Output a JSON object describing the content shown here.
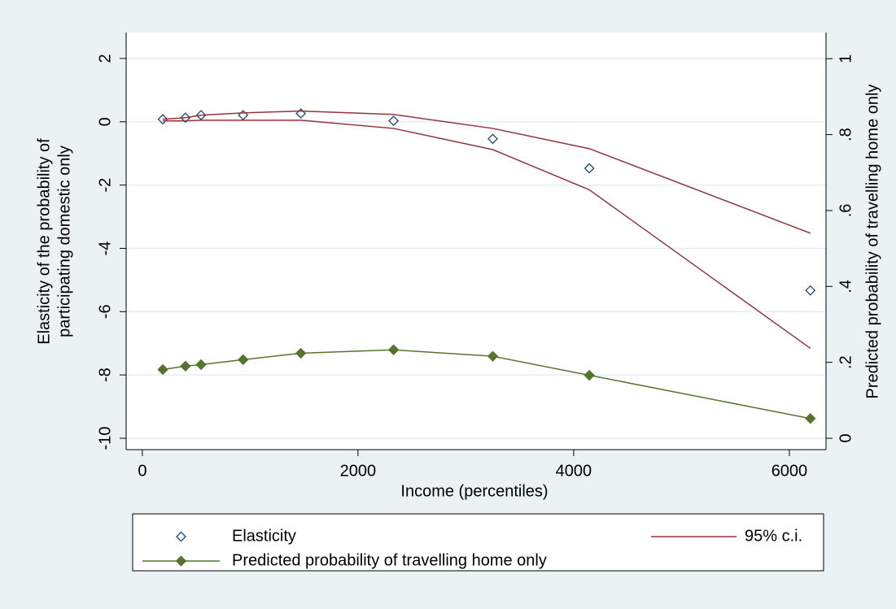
{
  "chart_data": {
    "type": "dual-axis-line",
    "x": [
      190,
      400,
      545,
      935,
      1470,
      2330,
      3250,
      4145,
      6195
    ],
    "xlabel": "Income (percentiles)",
    "ylabel": [
      "Elasticity of the probability of",
      "participating domestic only"
    ],
    "y2label": "Predicted probability of travelling home only",
    "xlim": [
      -150,
      6340
    ],
    "xticks": [
      0,
      2000,
      4000,
      6000
    ],
    "ylim": [
      -10.36,
      2.82
    ],
    "yticks": [
      -10,
      -8,
      -6,
      -4,
      -2,
      0,
      2
    ],
    "y2lim": [
      -0.03,
      1.069
    ],
    "y2ticks": [
      0,
      {
        "value": 0.2,
        "label": ".2"
      },
      {
        "value": 0.4,
        "label": ".4"
      },
      {
        "value": 0.6,
        "label": ".6"
      },
      {
        "value": 0.8,
        "label": ".8"
      },
      1
    ],
    "grid": true,
    "series": [
      {
        "name": "Elasticity",
        "style": "markers",
        "color": "#1a476f",
        "values": [
          0.08,
          0.13,
          0.21,
          0.21,
          0.26,
          0.03,
          -0.54,
          -1.47,
          -5.33
        ]
      },
      {
        "name": "95% c.i.",
        "style": "band-lines",
        "color": "#90353b",
        "upper": [
          0.08,
          0.13,
          0.21,
          0.28,
          0.34,
          0.23,
          -0.21,
          -0.85,
          -3.52
        ],
        "lower": [
          0.03,
          0.03,
          0.05,
          0.05,
          0.05,
          -0.21,
          -0.88,
          -2.15,
          -7.16
        ]
      },
      {
        "name": "Predicted probability of travelling home only",
        "style": "line-markers",
        "color": "#55752f",
        "axis": "y2",
        "values": [
          0.181,
          0.19,
          0.194,
          0.207,
          0.224,
          0.233,
          0.216,
          0.166,
          0.052
        ]
      }
    ]
  }
}
